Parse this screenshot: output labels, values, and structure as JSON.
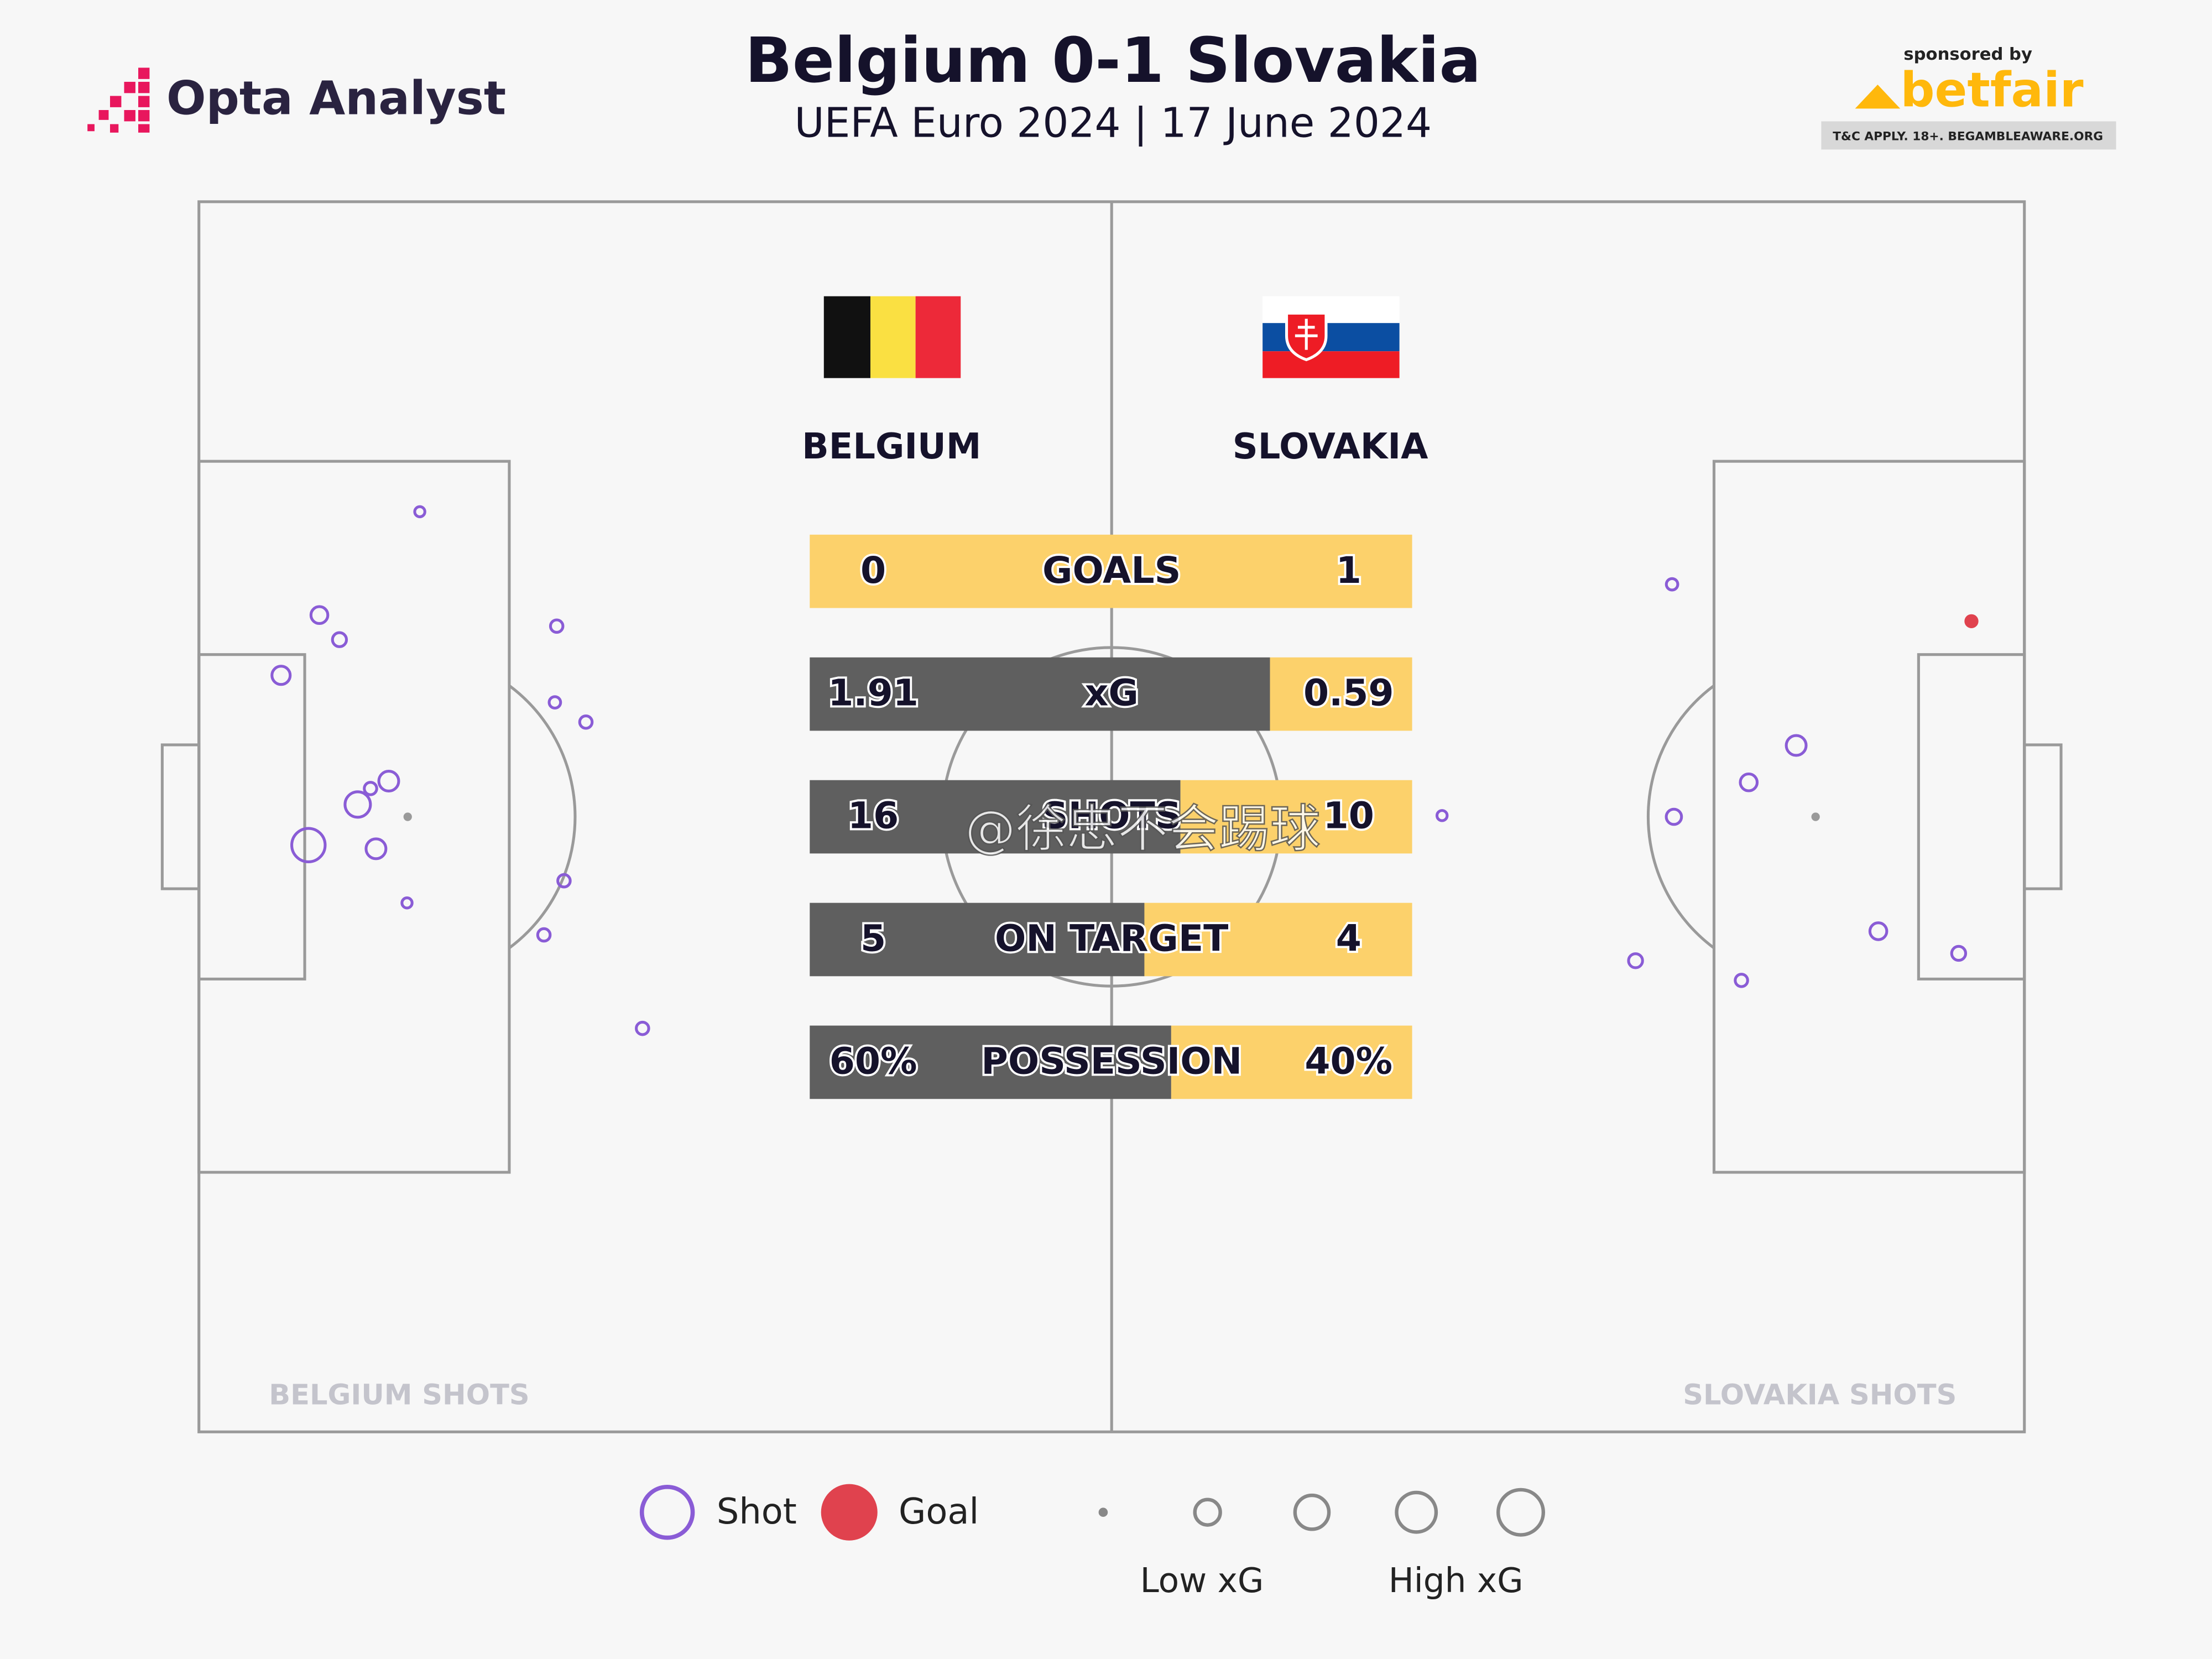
{
  "header": {
    "brand": "Opta Analyst",
    "title": "Belgium 0-1 Slovakia",
    "subtitle": "UEFA Euro 2024 | 17 June 2024",
    "sponsor": {
      "label": "sponsored by",
      "name": "betfair",
      "terms": "T&C APPLY. 18+. BEGAMBLEAWARE.ORG"
    }
  },
  "teams": [
    "BELGIUM",
    "SLOVAKIA"
  ],
  "stats": [
    {
      "label": "GOALS",
      "values": [
        0,
        1
      ]
    },
    {
      "label": "xG",
      "values": [
        1.91,
        0.59
      ]
    },
    {
      "label": "SHOTS",
      "values": [
        16,
        10
      ]
    },
    {
      "label": "ON TARGET",
      "values": [
        5,
        4
      ]
    },
    {
      "label": "POSSESSION",
      "values": [
        60,
        40
      ],
      "value_labels": [
        "60%",
        "40%"
      ]
    }
  ],
  "stat_colors": [
    "#5f5f5f",
    "#fcd16b"
  ],
  "shots": [
    {
      "label": "BELGIUM SHOTS",
      "points": [
        {
          "x": 12.1,
          "y": 25.2,
          "xg": 0.01,
          "goal": false
        },
        {
          "x": 6.6,
          "y": 33.6,
          "xg": 0.1,
          "goal": false
        },
        {
          "x": 7.7,
          "y": 35.6,
          "xg": 0.05,
          "goal": false
        },
        {
          "x": 4.5,
          "y": 38.5,
          "xg": 0.13,
          "goal": false
        },
        {
          "x": 19.6,
          "y": 34.5,
          "xg": 0.03,
          "goal": false
        },
        {
          "x": 19.5,
          "y": 40.7,
          "xg": 0.02,
          "goal": false
        },
        {
          "x": 21.2,
          "y": 42.3,
          "xg": 0.03,
          "goal": false
        },
        {
          "x": 9.4,
          "y": 47.7,
          "xg": 0.03,
          "goal": false
        },
        {
          "x": 10.4,
          "y": 47.1,
          "xg": 0.17,
          "goal": false
        },
        {
          "x": 8.7,
          "y": 49.0,
          "xg": 0.35,
          "goal": false
        },
        {
          "x": 6.0,
          "y": 52.3,
          "xg": 0.72,
          "goal": false
        },
        {
          "x": 9.7,
          "y": 52.6,
          "xg": 0.17,
          "goal": false
        },
        {
          "x": 11.4,
          "y": 57.0,
          "xg": 0.01,
          "goal": false
        },
        {
          "x": 20.0,
          "y": 55.2,
          "xg": 0.03,
          "goal": false
        },
        {
          "x": 18.9,
          "y": 59.6,
          "xg": 0.03,
          "goal": false
        },
        {
          "x": 24.3,
          "y": 67.2,
          "xg": 0.03,
          "goal": false
        }
      ]
    },
    {
      "label": "SLOVAKIA SHOTS",
      "points": [
        {
          "x": 80.7,
          "y": 31.1,
          "xg": 0.02,
          "goal": false
        },
        {
          "x": 97.1,
          "y": 34.1,
          "xg": 0.05,
          "goal": true
        },
        {
          "x": 87.5,
          "y": 44.2,
          "xg": 0.17,
          "goal": false
        },
        {
          "x": 84.9,
          "y": 47.2,
          "xg": 0.1,
          "goal": false
        },
        {
          "x": 80.8,
          "y": 50.0,
          "xg": 0.07,
          "goal": false
        },
        {
          "x": 68.1,
          "y": 49.9,
          "xg": 0.01,
          "goal": false
        },
        {
          "x": 92.0,
          "y": 59.3,
          "xg": 0.1,
          "goal": false
        },
        {
          "x": 96.4,
          "y": 61.1,
          "xg": 0.05,
          "goal": false
        },
        {
          "x": 78.7,
          "y": 61.7,
          "xg": 0.05,
          "goal": false
        },
        {
          "x": 84.5,
          "y": 63.3,
          "xg": 0.03,
          "goal": false
        }
      ]
    }
  ],
  "legend": {
    "shot": "Shot",
    "goal": "Goal",
    "low": "Low xG",
    "high": "High xG",
    "shot_color": "#8a5cd6",
    "goal_color": "#e0424e"
  },
  "watermark": "@徐忠不会踢球"
}
